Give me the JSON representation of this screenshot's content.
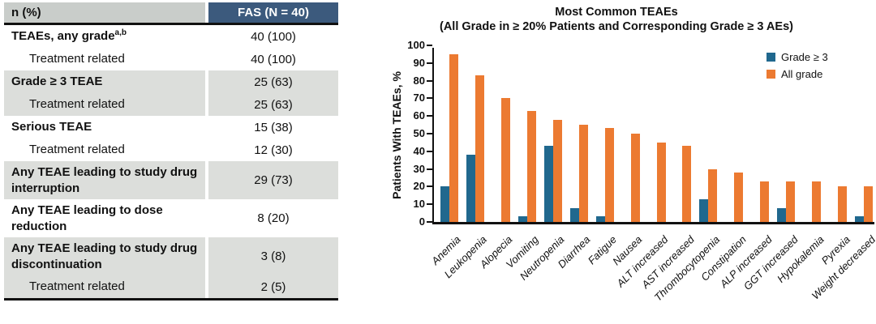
{
  "table": {
    "header": {
      "col1": "n (%)",
      "col2": "FAS (N = 40)"
    },
    "rows": [
      {
        "label": "TEAEs, any grade",
        "sup": "a,b",
        "value": "40 (100)",
        "style": "bold",
        "band": "white",
        "twoline": false
      },
      {
        "label": "Treatment related",
        "sup": "",
        "value": "40 (100)",
        "style": "indent",
        "band": "white",
        "twoline": false
      },
      {
        "label": "Grade ≥ 3 TEAE",
        "sup": "",
        "value": "25 (63)",
        "style": "bold",
        "band": "gray",
        "twoline": false
      },
      {
        "label": "Treatment related",
        "sup": "",
        "value": "25 (63)",
        "style": "indent",
        "band": "gray",
        "twoline": false
      },
      {
        "label": "Serious TEAE",
        "sup": "",
        "value": "15 (38)",
        "style": "bold",
        "band": "white",
        "twoline": false
      },
      {
        "label": "Treatment related",
        "sup": "",
        "value": "12 (30)",
        "style": "indent",
        "band": "white",
        "twoline": false
      },
      {
        "label": "Any TEAE leading to study drug interruption",
        "sup": "",
        "value": "29 (73)",
        "style": "bold",
        "band": "gray",
        "twoline": true
      },
      {
        "label": "Any TEAE leading to dose reduction",
        "sup": "",
        "value": "8 (20)",
        "style": "bold",
        "band": "white",
        "twoline": true
      },
      {
        "label": "Any TEAE leading to study drug discontinuation",
        "sup": "",
        "value": "3 (8)",
        "style": "bold",
        "band": "gray",
        "twoline": true
      },
      {
        "label": "Treatment related",
        "sup": "",
        "value": "2 (5)",
        "style": "indent",
        "band": "gray",
        "twoline": false
      }
    ]
  },
  "chart_data": {
    "type": "bar",
    "title": "Most Common TEAEs",
    "subtitle": "(All Grade in ≥ 20% Patients and Corresponding Grade ≥ 3 AEs)",
    "ylabel": "Patients With TEAEs, %",
    "xlabel": "",
    "ylim": [
      0,
      100
    ],
    "ytick_step": 10,
    "grid": false,
    "legend_position": "top-right",
    "categories": [
      "Anemia",
      "Leukopenia",
      "Alopecia",
      "Vomiting",
      "Neutropenia",
      "Diarrhea",
      "Fatigue",
      "Nausea",
      "ALT increased",
      "AST increased",
      "Thrombocytopenia",
      "Constipation",
      "ALP increased",
      "GGT increased",
      "Hypokalemia",
      "Pyrexia",
      "Weight decreased"
    ],
    "series": [
      {
        "name": "Grade ≥ 3",
        "color": "#20688e",
        "values": [
          20,
          38,
          0,
          3,
          43,
          8,
          3,
          0,
          0,
          0,
          13,
          0,
          0,
          8,
          0,
          0,
          3
        ]
      },
      {
        "name": "All grade",
        "color": "#ec7a31",
        "values": [
          95,
          83,
          70,
          63,
          58,
          55,
          53,
          50,
          45,
          43,
          30,
          28,
          23,
          23,
          23,
          20,
          20
        ]
      }
    ]
  },
  "colors": {
    "header_gray": "#c9cdca",
    "band_gray": "#dcdedb",
    "header_blue": "#3c5a7d",
    "axis_black": "#111111"
  }
}
